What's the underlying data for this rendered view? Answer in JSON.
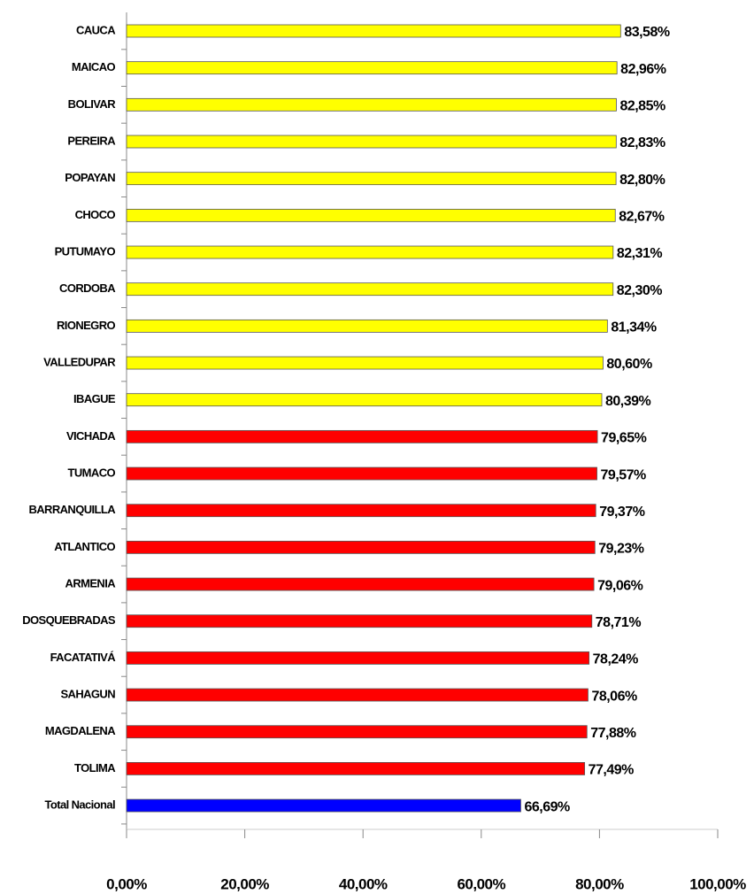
{
  "chart_data": {
    "type": "bar",
    "orientation": "horizontal",
    "categories": [
      "CAUCA",
      "MAICAO",
      "BOLIVAR",
      "PEREIRA",
      "POPAYAN",
      "CHOCO",
      "PUTUMAYO",
      "CORDOBA",
      "RIONEGRO",
      "VALLEDUPAR",
      "IBAGUE",
      "VICHADA",
      "TUMACO",
      "BARRANQUILLA",
      "ATLANTICO",
      "ARMENIA",
      "DOSQUEBRADAS",
      "FACATATIVÁ",
      "SAHAGUN",
      "MAGDALENA",
      "TOLIMA",
      "Total Nacional"
    ],
    "values": [
      83.58,
      82.96,
      82.85,
      82.83,
      82.8,
      82.67,
      82.31,
      82.3,
      81.34,
      80.6,
      80.39,
      79.65,
      79.57,
      79.37,
      79.23,
      79.06,
      78.71,
      78.24,
      78.06,
      77.88,
      77.49,
      66.69
    ],
    "value_labels": [
      "83,58%",
      "82,96%",
      "82,85%",
      "82,83%",
      "82,80%",
      "82,67%",
      "82,31%",
      "82,30%",
      "81,34%",
      "80,60%",
      "80,39%",
      "79,65%",
      "79,57%",
      "79,37%",
      "79,23%",
      "79,06%",
      "78,71%",
      "78,24%",
      "78,06%",
      "77,88%",
      "77,49%",
      "66,69%"
    ],
    "colors": [
      "#ffff00",
      "#ffff00",
      "#ffff00",
      "#ffff00",
      "#ffff00",
      "#ffff00",
      "#ffff00",
      "#ffff00",
      "#ffff00",
      "#ffff00",
      "#ffff00",
      "#ff0000",
      "#ff0000",
      "#ff0000",
      "#ff0000",
      "#ff0000",
      "#ff0000",
      "#ff0000",
      "#ff0000",
      "#ff0000",
      "#ff0000",
      "#0000ff"
    ],
    "xlim": [
      0,
      100
    ],
    "xticks": [
      {
        "value": 0,
        "label": "0,00%"
      },
      {
        "value": 20,
        "label": "20,00%"
      },
      {
        "value": 40,
        "label": "40,00%"
      },
      {
        "value": 60,
        "label": "60,00%"
      },
      {
        "value": 80,
        "label": "80,00%"
      },
      {
        "value": 100,
        "label": "100,00%"
      }
    ],
    "grid": false
  }
}
